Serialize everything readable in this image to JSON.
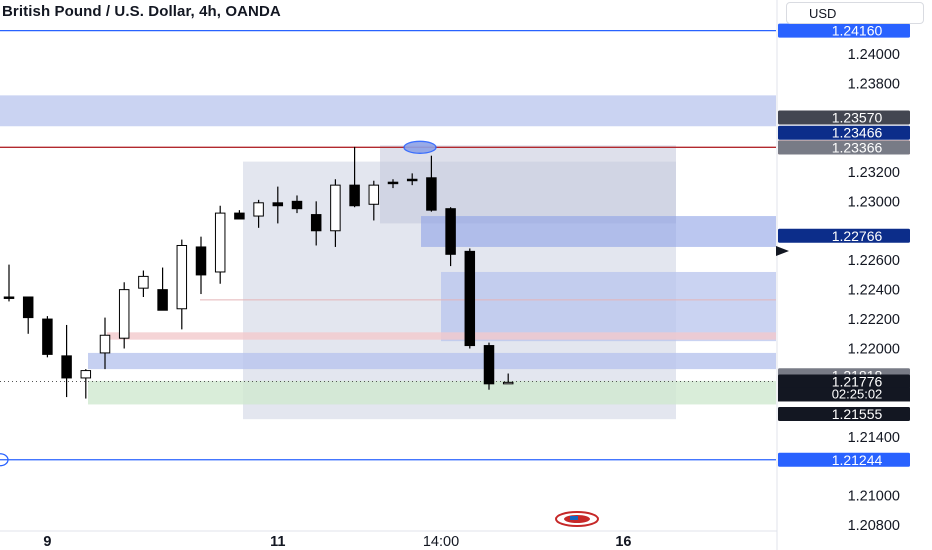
{
  "header": {
    "title": "British Pound / U.S. Dollar, 4h, OANDA",
    "currency": "USD"
  },
  "colors": {
    "bull": "#ffffff",
    "bear": "#000000",
    "wick": "#000000",
    "zone": "#b8c4ee",
    "zone_dark": "#8ea2e6",
    "range_box": "#c2c7db",
    "blue_line": "#2962ff",
    "red_line": "#b2292e",
    "green_zone": "#cfe8cf",
    "pink_zone": "#f3c9cc",
    "price_label_dark": "#434651",
    "price_label_navy": "#0c2d8a",
    "price_label_red": "#c62828",
    "price_label_gray": "#787b86",
    "price_label_blue": "#2962ff"
  },
  "chart_data": {
    "type": "candlestick",
    "title": "British Pound / U.S. Dollar, 4h, OANDA",
    "ylim": [
      1.2076,
      1.243
    ],
    "y_ticks": [
      "1.24000",
      "1.23800",
      "1.23200",
      "1.23000",
      "1.22600",
      "1.22400",
      "1.22200",
      "1.22000",
      "1.21400",
      "1.21000",
      "1.20800"
    ],
    "y_tick_values": [
      1.24,
      1.238,
      1.232,
      1.23,
      1.226,
      1.224,
      1.222,
      1.22,
      1.214,
      1.21,
      1.208
    ],
    "x_ticks": [
      "9",
      "11",
      "14:00",
      "16"
    ],
    "x_tick_bars": [
      2,
      14,
      22.5,
      32
    ],
    "candles": [
      {
        "o": 1.2235,
        "h": 1.2257,
        "l": 1.2232,
        "c": 1.2234
      },
      {
        "o": 1.2235,
        "h": 1.2235,
        "l": 1.221,
        "c": 1.2221
      },
      {
        "o": 1.222,
        "h": 1.2222,
        "l": 1.2194,
        "c": 1.2196
      },
      {
        "o": 1.2195,
        "h": 1.2216,
        "l": 1.2167,
        "c": 1.218
      },
      {
        "o": 1.218,
        "h": 1.2186,
        "l": 1.2166,
        "c": 1.2185
      },
      {
        "o": 1.2197,
        "h": 1.2221,
        "l": 1.2186,
        "c": 1.2209
      },
      {
        "o": 1.2207,
        "h": 1.2245,
        "l": 1.22,
        "c": 1.224
      },
      {
        "o": 1.2241,
        "h": 1.2253,
        "l": 1.2235,
        "c": 1.2249
      },
      {
        "o": 1.224,
        "h": 1.2255,
        "l": 1.2226,
        "c": 1.2226
      },
      {
        "o": 1.2227,
        "h": 1.2274,
        "l": 1.2213,
        "c": 1.227
      },
      {
        "o": 1.2269,
        "h": 1.2276,
        "l": 1.2237,
        "c": 1.225
      },
      {
        "o": 1.2252,
        "h": 1.2297,
        "l": 1.2244,
        "c": 1.2292
      },
      {
        "o": 1.2292,
        "h": 1.2294,
        "l": 1.2288,
        "c": 1.2288
      },
      {
        "o": 1.229,
        "h": 1.2301,
        "l": 1.2282,
        "c": 1.2299
      },
      {
        "o": 1.2299,
        "h": 1.231,
        "l": 1.2285,
        "c": 1.2297
      },
      {
        "o": 1.23,
        "h": 1.2304,
        "l": 1.2292,
        "c": 1.2295
      },
      {
        "o": 1.2291,
        "h": 1.23,
        "l": 1.227,
        "c": 1.228
      },
      {
        "o": 1.228,
        "h": 1.2315,
        "l": 1.2269,
        "c": 1.2311
      },
      {
        "o": 1.2311,
        "h": 1.2337,
        "l": 1.2296,
        "c": 1.2297
      },
      {
        "o": 1.2298,
        "h": 1.2314,
        "l": 1.2287,
        "c": 1.2311
      },
      {
        "o": 1.2313,
        "h": 1.2315,
        "l": 1.2309,
        "c": 1.2312
      },
      {
        "o": 1.2315,
        "h": 1.2319,
        "l": 1.2311,
        "c": 1.2314
      },
      {
        "o": 1.2316,
        "h": 1.2331,
        "l": 1.2293,
        "c": 1.2294
      },
      {
        "o": 1.2295,
        "h": 1.2296,
        "l": 1.2256,
        "c": 1.2264
      },
      {
        "o": 1.2266,
        "h": 1.2268,
        "l": 1.22,
        "c": 1.2202
      },
      {
        "o": 1.2202,
        "h": 1.2204,
        "l": 1.2172,
        "c": 1.2176
      },
      {
        "o": 1.2176,
        "h": 1.2183,
        "l": 1.2176,
        "c": 1.2177
      }
    ],
    "price_labels": [
      {
        "text": "1.24160",
        "value": 1.2416,
        "color": "#2962ff"
      },
      {
        "text": "1.23570",
        "value": 1.2357,
        "color": "#434651"
      },
      {
        "text": "1.23466",
        "value": 1.23466,
        "color": "#0c2d8a"
      },
      {
        "text": "1.23367",
        "value": 1.23367,
        "color": "#c62828"
      },
      {
        "text": "1.23366",
        "value": 1.23366,
        "color": "#787b86"
      },
      {
        "text": "1.22766",
        "value": 1.22766,
        "color": "#0c2d8a"
      },
      {
        "text": "1.21818",
        "value": 1.21818,
        "color": "#787b86"
      },
      {
        "text": "1.21776",
        "value": 1.21776,
        "color": "#131722"
      },
      {
        "text": "1.21555",
        "value": 1.21555,
        "color": "#131722"
      },
      {
        "text": "1.21244",
        "value": 1.21244,
        "color": "#2962ff"
      }
    ],
    "countdown": "02:25:02"
  }
}
